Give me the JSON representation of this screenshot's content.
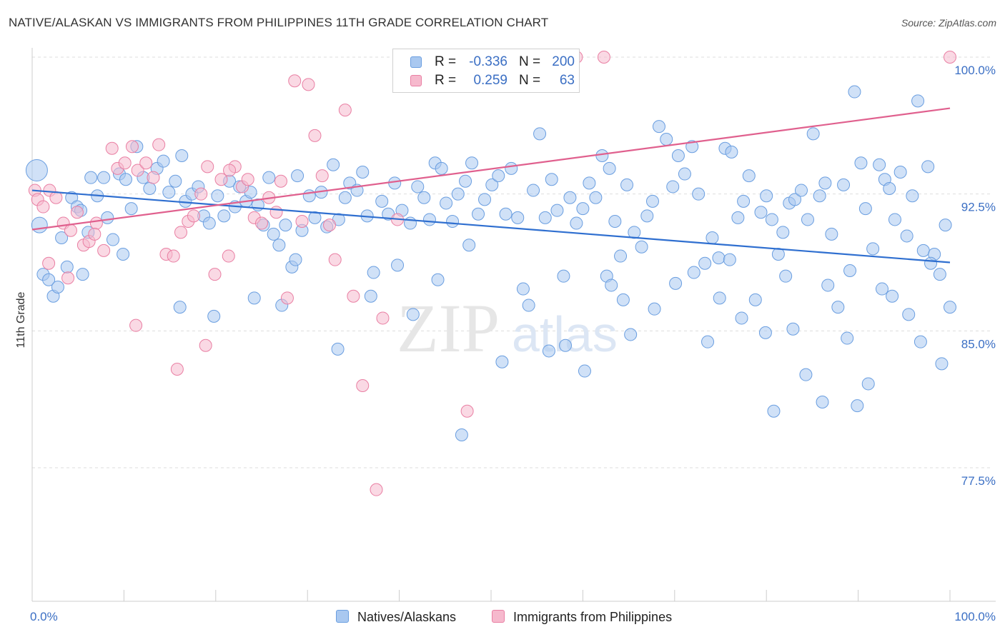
{
  "chart_data": {
    "type": "scatter",
    "title": "NATIVE/ALASKAN VS IMMIGRANTS FROM PHILIPPINES 11TH GRADE CORRELATION CHART",
    "source": "Source: ZipAtlas.com",
    "xlabel": "",
    "ylabel": "11th Grade",
    "xlim": [
      0,
      100
    ],
    "ylim": [
      70,
      100.6
    ],
    "x_tick_labels": {
      "min": "0.0%",
      "max": "100.0%"
    },
    "y_ticks": [
      {
        "value": 100.0,
        "label": "100.0%"
      },
      {
        "value": 92.5,
        "label": "92.5%"
      },
      {
        "value": 85.0,
        "label": "85.0%"
      },
      {
        "value": 77.5,
        "label": "77.5%"
      }
    ],
    "grid": true,
    "watermark": "ZIPatlas",
    "legend_stats": [
      {
        "r_label": "R =",
        "r_value": "-0.336",
        "n_label": "N =",
        "n_value": "200"
      },
      {
        "r_label": "R =",
        "r_value": "0.259",
        "n_label": "N =",
        "n_value": "63"
      }
    ],
    "series": [
      {
        "name": "Natives/Alaskans",
        "color": "#6a9ee0",
        "fill": "#a9c8f0",
        "trend": {
          "x": [
            0,
            100
          ],
          "y": [
            92.7,
            88.75
          ]
        },
        "points": [
          [
            0.5,
            93.8
          ],
          [
            0.8,
            90.8
          ],
          [
            1.2,
            88.1
          ],
          [
            1.8,
            87.8
          ],
          [
            2.3,
            86.9
          ],
          [
            2.8,
            87.4
          ],
          [
            3.2,
            90.1
          ],
          [
            3.8,
            88.5
          ],
          [
            4.3,
            92.3
          ],
          [
            4.9,
            91.8
          ],
          [
            5.3,
            91.6
          ],
          [
            6.1,
            90.4
          ],
          [
            6.4,
            93.4
          ],
          [
            7.1,
            92.4
          ],
          [
            7.8,
            93.4
          ],
          [
            8.2,
            91.2
          ],
          [
            8.8,
            90.0
          ],
          [
            9.5,
            93.6
          ],
          [
            10.2,
            93.3
          ],
          [
            10.8,
            91.7
          ],
          [
            11.4,
            95.1
          ],
          [
            12.1,
            93.4
          ],
          [
            12.8,
            92.8
          ],
          [
            13.6,
            93.9
          ],
          [
            14.3,
            94.3
          ],
          [
            14.9,
            92.6
          ],
          [
            15.6,
            93.2
          ],
          [
            16.3,
            94.6
          ],
          [
            16.7,
            92.1
          ],
          [
            17.4,
            92.5
          ],
          [
            18.1,
            92.9
          ],
          [
            18.7,
            91.3
          ],
          [
            19.3,
            90.9
          ],
          [
            20.2,
            92.4
          ],
          [
            20.9,
            91.3
          ],
          [
            21.5,
            93.2
          ],
          [
            22.1,
            91.8
          ],
          [
            22.6,
            92.9
          ],
          [
            23.3,
            92.1
          ],
          [
            23.8,
            92.6
          ],
          [
            24.6,
            91.9
          ],
          [
            25.2,
            90.8
          ],
          [
            25.8,
            93.4
          ],
          [
            26.3,
            90.3
          ],
          [
            26.9,
            89.7
          ],
          [
            27.6,
            90.8
          ],
          [
            28.3,
            88.5
          ],
          [
            28.9,
            93.5
          ],
          [
            29.4,
            90.5
          ],
          [
            30.2,
            92.4
          ],
          [
            30.8,
            91.2
          ],
          [
            31.5,
            92.6
          ],
          [
            32.1,
            90.7
          ],
          [
            32.8,
            94.1
          ],
          [
            33.4,
            91.1
          ],
          [
            34.1,
            92.3
          ],
          [
            34.6,
            93.1
          ],
          [
            35.4,
            92.7
          ],
          [
            36.0,
            93.7
          ],
          [
            36.5,
            91.3
          ],
          [
            37.2,
            88.2
          ],
          [
            38.1,
            92.1
          ],
          [
            38.8,
            91.4
          ],
          [
            39.5,
            93.1
          ],
          [
            40.3,
            91.6
          ],
          [
            41.2,
            90.9
          ],
          [
            42.0,
            92.9
          ],
          [
            42.7,
            92.3
          ],
          [
            43.3,
            91.1
          ],
          [
            43.9,
            94.2
          ],
          [
            44.6,
            93.9
          ],
          [
            45.1,
            92.0
          ],
          [
            45.8,
            91.0
          ],
          [
            46.4,
            92.5
          ],
          [
            47.2,
            93.2
          ],
          [
            47.9,
            94.2
          ],
          [
            48.6,
            91.4
          ],
          [
            49.3,
            92.2
          ],
          [
            50.1,
            93.0
          ],
          [
            50.8,
            93.5
          ],
          [
            51.6,
            91.4
          ],
          [
            52.2,
            93.9
          ],
          [
            52.9,
            91.2
          ],
          [
            53.5,
            87.3
          ],
          [
            54.1,
            86.4
          ],
          [
            54.6,
            92.7
          ],
          [
            55.3,
            95.8
          ],
          [
            55.9,
            91.2
          ],
          [
            56.6,
            93.3
          ],
          [
            57.2,
            91.6
          ],
          [
            57.9,
            88.0
          ],
          [
            58.6,
            92.3
          ],
          [
            59.3,
            90.9
          ],
          [
            60.0,
            91.7
          ],
          [
            60.7,
            93.1
          ],
          [
            61.4,
            92.3
          ],
          [
            62.1,
            94.6
          ],
          [
            62.9,
            93.9
          ],
          [
            63.5,
            91.0
          ],
          [
            64.1,
            89.1
          ],
          [
            64.8,
            93.0
          ],
          [
            65.6,
            90.4
          ],
          [
            66.4,
            89.6
          ],
          [
            67.0,
            91.3
          ],
          [
            67.6,
            92.1
          ],
          [
            68.3,
            96.2
          ],
          [
            69.1,
            95.5
          ],
          [
            69.8,
            92.9
          ],
          [
            70.4,
            94.6
          ],
          [
            71.1,
            93.6
          ],
          [
            71.9,
            95.1
          ],
          [
            72.6,
            92.5
          ],
          [
            73.3,
            88.7
          ],
          [
            74.1,
            90.1
          ],
          [
            74.8,
            89.0
          ],
          [
            75.5,
            95.0
          ],
          [
            76.2,
            94.8
          ],
          [
            76.9,
            91.2
          ],
          [
            77.5,
            92.1
          ],
          [
            78.1,
            93.5
          ],
          [
            78.8,
            86.7
          ],
          [
            79.4,
            91.5
          ],
          [
            80.0,
            92.4
          ],
          [
            80.6,
            91.1
          ],
          [
            81.3,
            89.2
          ],
          [
            81.8,
            90.4
          ],
          [
            82.5,
            92.0
          ],
          [
            83.1,
            92.2
          ],
          [
            83.8,
            92.7
          ],
          [
            84.5,
            91.1
          ],
          [
            85.1,
            95.8
          ],
          [
            85.8,
            92.4
          ],
          [
            86.4,
            93.1
          ],
          [
            87.1,
            90.3
          ],
          [
            87.8,
            86.3
          ],
          [
            88.4,
            93.0
          ],
          [
            89.1,
            88.3
          ],
          [
            89.6,
            98.1
          ],
          [
            90.3,
            94.2
          ],
          [
            90.8,
            91.7
          ],
          [
            91.6,
            89.5
          ],
          [
            92.3,
            94.1
          ],
          [
            92.9,
            93.3
          ],
          [
            93.4,
            92.8
          ],
          [
            94.0,
            91.1
          ],
          [
            94.6,
            93.7
          ],
          [
            95.3,
            90.2
          ],
          [
            95.9,
            92.4
          ],
          [
            96.5,
            97.6
          ],
          [
            97.1,
            89.4
          ],
          [
            97.6,
            94.0
          ],
          [
            98.3,
            89.2
          ],
          [
            98.9,
            88.1
          ],
          [
            99.5,
            90.8
          ],
          [
            100.0,
            86.3
          ],
          [
            5.5,
            88.1
          ],
          [
            9.9,
            89.2
          ],
          [
            16.1,
            86.3
          ],
          [
            19.8,
            85.8
          ],
          [
            24.2,
            86.8
          ],
          [
            28.7,
            88.9
          ],
          [
            33.3,
            84.0
          ],
          [
            39.8,
            88.6
          ],
          [
            44.2,
            87.8
          ],
          [
            47.6,
            89.7
          ],
          [
            51.2,
            83.3
          ],
          [
            56.3,
            83.9
          ],
          [
            60.2,
            82.8
          ],
          [
            62.6,
            88.0
          ],
          [
            65.2,
            84.8
          ],
          [
            67.8,
            86.2
          ],
          [
            70.1,
            87.6
          ],
          [
            72.1,
            88.2
          ],
          [
            74.9,
            86.8
          ],
          [
            77.3,
            85.7
          ],
          [
            79.9,
            84.9
          ],
          [
            82.1,
            88.0
          ],
          [
            84.3,
            82.6
          ],
          [
            86.7,
            87.5
          ],
          [
            88.8,
            84.6
          ],
          [
            91.1,
            82.1
          ],
          [
            93.7,
            86.9
          ],
          [
            95.5,
            85.9
          ],
          [
            97.9,
            88.7
          ],
          [
            99.1,
            83.2
          ],
          [
            27.2,
            86.4
          ],
          [
            36.9,
            86.9
          ],
          [
            41.5,
            85.9
          ],
          [
            58.1,
            84.2
          ],
          [
            64.4,
            86.7
          ],
          [
            73.6,
            84.4
          ],
          [
            80.8,
            80.6
          ],
          [
            86.1,
            81.1
          ],
          [
            92.6,
            87.3
          ],
          [
            96.8,
            84.4
          ],
          [
            46.8,
            79.3
          ],
          [
            63.1,
            87.5
          ],
          [
            76.0,
            88.9
          ],
          [
            82.9,
            85.1
          ],
          [
            89.9,
            80.9
          ]
        ]
      },
      {
        "name": "Immigrants from Philippines",
        "color": "#e97fa3",
        "fill": "#f6b9cd",
        "trend": {
          "x": [
            0,
            100
          ],
          "y": [
            90.55,
            97.2
          ]
        },
        "points": [
          [
            0.3,
            92.7
          ],
          [
            0.6,
            92.2
          ],
          [
            1.2,
            91.8
          ],
          [
            1.9,
            92.7
          ],
          [
            2.6,
            92.3
          ],
          [
            3.4,
            90.9
          ],
          [
            4.2,
            90.5
          ],
          [
            4.9,
            91.5
          ],
          [
            5.6,
            89.7
          ],
          [
            6.2,
            89.9
          ],
          [
            7.0,
            90.9
          ],
          [
            7.8,
            89.4
          ],
          [
            8.7,
            95.0
          ],
          [
            9.3,
            93.9
          ],
          [
            10.1,
            94.2
          ],
          [
            10.9,
            95.1
          ],
          [
            11.5,
            93.8
          ],
          [
            12.4,
            94.2
          ],
          [
            13.2,
            93.4
          ],
          [
            13.8,
            95.2
          ],
          [
            14.6,
            89.2
          ],
          [
            15.4,
            89.1
          ],
          [
            16.2,
            90.4
          ],
          [
            17.0,
            91.0
          ],
          [
            17.6,
            91.3
          ],
          [
            18.4,
            92.5
          ],
          [
            19.1,
            94.0
          ],
          [
            19.9,
            88.1
          ],
          [
            20.6,
            93.3
          ],
          [
            21.4,
            89.1
          ],
          [
            22.1,
            94.0
          ],
          [
            22.9,
            92.9
          ],
          [
            23.5,
            93.3
          ],
          [
            24.2,
            91.2
          ],
          [
            25.0,
            90.9
          ],
          [
            25.8,
            92.3
          ],
          [
            26.6,
            91.5
          ],
          [
            27.1,
            93.2
          ],
          [
            27.8,
            86.8
          ],
          [
            28.6,
            98.7
          ],
          [
            29.4,
            91.0
          ],
          [
            30.1,
            98.5
          ],
          [
            30.8,
            95.7
          ],
          [
            31.6,
            93.5
          ],
          [
            32.4,
            90.8
          ],
          [
            33.0,
            88.9
          ],
          [
            34.1,
            97.1
          ],
          [
            35.0,
            86.9
          ],
          [
            36.0,
            82.0
          ],
          [
            37.5,
            76.3
          ],
          [
            38.2,
            85.7
          ],
          [
            39.8,
            91.1
          ],
          [
            47.4,
            80.6
          ],
          [
            59.3,
            100.0
          ],
          [
            62.3,
            100.0
          ],
          [
            100.0,
            100.0
          ],
          [
            1.8,
            88.7
          ],
          [
            3.9,
            87.9
          ],
          [
            6.8,
            90.3
          ],
          [
            11.3,
            85.3
          ],
          [
            15.8,
            82.9
          ],
          [
            18.9,
            84.2
          ],
          [
            21.5,
            93.8
          ]
        ]
      }
    ]
  },
  "legend": {
    "natives_label": "Natives/Alaskans",
    "philippines_label": "Immigrants from Philippines"
  }
}
